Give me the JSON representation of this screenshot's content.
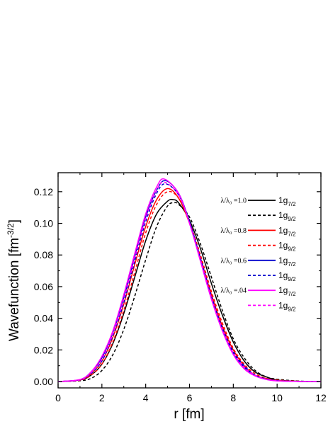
{
  "chart_data": {
    "type": "line",
    "title": "",
    "xlabel": "r [fm]",
    "ylabel_main": "Wavefunction [fm",
    "ylabel_exp": "-3/2",
    "ylabel_close": "]",
    "xlim": [
      0,
      12
    ],
    "ylim": [
      -0.004,
      0.132
    ],
    "xticks": [
      "0",
      "2",
      "4",
      "6",
      "8",
      "10",
      "12"
    ],
    "yticks": [
      "0.00",
      "0.02",
      "0.04",
      "0.06",
      "0.08",
      "0.10",
      "0.12"
    ],
    "grid": false,
    "legend_position": "top-right",
    "legend": [
      {
        "group": "λ/λ₀ =1.0",
        "orbital": "1g",
        "sub": "7/2",
        "color": "#000000",
        "dash": "solid"
      },
      {
        "group": "",
        "orbital": "1g",
        "sub": "9/2",
        "color": "#000000",
        "dash": "dashed"
      },
      {
        "group": "λ/λ₀ =0.8",
        "orbital": "1g",
        "sub": "7/2",
        "color": "#ff0000",
        "dash": "solid"
      },
      {
        "group": "",
        "orbital": "1g",
        "sub": "9/2",
        "color": "#ff0000",
        "dash": "dashed"
      },
      {
        "group": "λ/λ₀ =0.6",
        "orbital": "1g",
        "sub": "7/2",
        "color": "#0000cc",
        "dash": "solid"
      },
      {
        "group": "",
        "orbital": "1g",
        "sub": "9/2",
        "color": "#0000cc",
        "dash": "dashed"
      },
      {
        "group": "λ/λ₀ =.04",
        "orbital": "1g",
        "sub": "7/2",
        "color": "#ff00ff",
        "dash": "solid"
      },
      {
        "group": "",
        "orbital": "1g",
        "sub": "9/2",
        "color": "#ff00ff",
        "dash": "dashed"
      }
    ],
    "series": [
      {
        "color": "#000000",
        "dash": "solid",
        "x": [
          0,
          1,
          1.5,
          2,
          2.5,
          3,
          3.5,
          4,
          4.5,
          5,
          5.25,
          5.5,
          6,
          6.5,
          7,
          7.5,
          8,
          8.5,
          9,
          9.5,
          10,
          11,
          12
        ],
        "y": [
          0.0,
          0.001,
          0.004,
          0.011,
          0.024,
          0.043,
          0.066,
          0.089,
          0.106,
          0.114,
          0.115,
          0.113,
          0.102,
          0.084,
          0.062,
          0.042,
          0.025,
          0.013,
          0.006,
          0.003,
          0.001,
          0.0002,
          0.0
        ]
      },
      {
        "color": "#000000",
        "dash": "dashed",
        "x": [
          0,
          1,
          1.5,
          2,
          2.5,
          3,
          3.5,
          4,
          4.5,
          5,
          5.3,
          5.5,
          6,
          6.5,
          7,
          7.5,
          8,
          8.5,
          9,
          9.5,
          10,
          11,
          12
        ],
        "y": [
          0.0,
          0.0005,
          0.002,
          0.007,
          0.017,
          0.033,
          0.054,
          0.077,
          0.098,
          0.111,
          0.113,
          0.112,
          0.104,
          0.087,
          0.066,
          0.045,
          0.027,
          0.015,
          0.007,
          0.003,
          0.0015,
          0.0003,
          0.0
        ]
      },
      {
        "color": "#ff0000",
        "dash": "solid",
        "x": [
          0,
          1,
          1.5,
          2,
          2.5,
          3,
          3.5,
          4,
          4.5,
          5,
          5.5,
          6,
          6.5,
          7,
          7.5,
          8,
          8.5,
          9,
          9.5,
          10,
          11,
          12
        ],
        "y": [
          0.0,
          0.001,
          0.005,
          0.013,
          0.028,
          0.049,
          0.074,
          0.098,
          0.115,
          0.122,
          0.116,
          0.1,
          0.078,
          0.055,
          0.035,
          0.02,
          0.01,
          0.004,
          0.002,
          0.0007,
          0.0001,
          0.0
        ]
      },
      {
        "color": "#ff0000",
        "dash": "dashed",
        "x": [
          0,
          1,
          1.5,
          2,
          2.5,
          3,
          3.5,
          4,
          4.5,
          5,
          5.5,
          6,
          6.5,
          7,
          7.5,
          8,
          8.5,
          9,
          9.5,
          10,
          11,
          12
        ],
        "y": [
          0.0,
          0.0008,
          0.004,
          0.011,
          0.025,
          0.045,
          0.069,
          0.094,
          0.112,
          0.12,
          0.116,
          0.101,
          0.08,
          0.057,
          0.037,
          0.021,
          0.011,
          0.005,
          0.002,
          0.001,
          0.0002,
          0.0
        ]
      },
      {
        "color": "#0000cc",
        "dash": "solid",
        "x": [
          0,
          1,
          1.5,
          2,
          2.5,
          3,
          3.5,
          4,
          4.5,
          4.9,
          5.5,
          6,
          6.5,
          7,
          7.5,
          8,
          8.5,
          9,
          9.5,
          10,
          11,
          12
        ],
        "y": [
          0.0,
          0.0012,
          0.006,
          0.015,
          0.031,
          0.053,
          0.079,
          0.104,
          0.121,
          0.127,
          0.119,
          0.101,
          0.077,
          0.053,
          0.033,
          0.018,
          0.009,
          0.004,
          0.0015,
          0.0005,
          0.0001,
          0.0
        ]
      },
      {
        "color": "#0000cc",
        "dash": "dashed",
        "x": [
          0,
          1,
          1.5,
          2,
          2.5,
          3,
          3.5,
          4,
          4.5,
          4.9,
          5.5,
          6,
          6.5,
          7,
          7.5,
          8,
          8.5,
          9,
          9.5,
          10,
          11,
          12
        ],
        "y": [
          0.0,
          0.001,
          0.005,
          0.013,
          0.029,
          0.05,
          0.076,
          0.101,
          0.119,
          0.125,
          0.118,
          0.101,
          0.078,
          0.054,
          0.034,
          0.019,
          0.01,
          0.004,
          0.0017,
          0.0006,
          0.0001,
          0.0
        ]
      },
      {
        "color": "#ff00ff",
        "dash": "solid",
        "x": [
          0,
          1,
          1.5,
          2,
          2.5,
          3,
          3.5,
          4,
          4.5,
          4.85,
          5.5,
          6,
          6.5,
          7,
          7.5,
          8,
          8.5,
          9,
          9.5,
          10,
          11,
          12
        ],
        "y": [
          0.0,
          0.0013,
          0.006,
          0.016,
          0.032,
          0.055,
          0.081,
          0.106,
          0.123,
          0.128,
          0.119,
          0.1,
          0.076,
          0.052,
          0.032,
          0.017,
          0.008,
          0.0035,
          0.0013,
          0.0004,
          0.0001,
          0.0
        ]
      },
      {
        "color": "#ff00ff",
        "dash": "dashed",
        "x": [
          0,
          1,
          1.5,
          2,
          2.5,
          3,
          3.5,
          4,
          4.5,
          4.85,
          5.5,
          6,
          6.5,
          7,
          7.5,
          8,
          8.5,
          9,
          9.5,
          10,
          11,
          12
        ],
        "y": [
          0.0,
          0.0011,
          0.0055,
          0.014,
          0.03,
          0.052,
          0.078,
          0.103,
          0.121,
          0.126,
          0.118,
          0.1,
          0.077,
          0.053,
          0.033,
          0.018,
          0.009,
          0.004,
          0.0015,
          0.0005,
          0.0001,
          0.0
        ]
      }
    ]
  }
}
